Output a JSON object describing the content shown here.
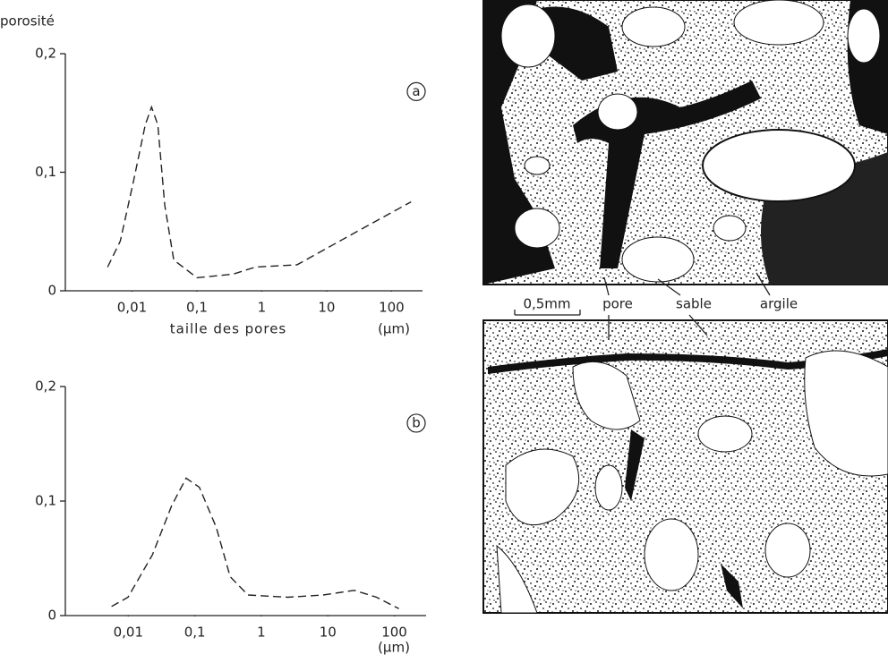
{
  "chart_data": [
    {
      "type": "line",
      "y_label": "porosité",
      "annotation": "a",
      "x_label": "taille des pores",
      "x_unit": "(µm)",
      "xscale": "log",
      "color": "#222",
      "dashed": true,
      "xlim": [
        0.001,
        300
      ],
      "ylim": [
        0,
        0.2
      ],
      "xticks": [
        {
          "value": 0.01,
          "label": "0,01"
        },
        {
          "value": 0.1,
          "label": "0,1"
        },
        1,
        10,
        100
      ],
      "yticks": [
        0,
        {
          "value": 0.1,
          "label": "0,1"
        },
        {
          "value": 0.2,
          "label": "0,2"
        }
      ],
      "x": [
        0.0042,
        0.0066,
        0.0107,
        0.016,
        0.02,
        0.025,
        0.032,
        0.044,
        0.1,
        0.36,
        0.8,
        3.5,
        20,
        200
      ],
      "values": [
        0.02,
        0.042,
        0.094,
        0.14,
        0.155,
        0.14,
        0.072,
        0.026,
        0.011,
        0.014,
        0.02,
        0.022,
        0.045,
        0.075
      ]
    },
    {
      "type": "line",
      "annotation": "b",
      "x_unit": "(µm)",
      "xscale": "log",
      "color": "#222",
      "dashed": true,
      "xlim": [
        0.001,
        300
      ],
      "ylim": [
        0,
        0.2
      ],
      "xticks": [
        {
          "value": 0.01,
          "label": "0,01"
        },
        {
          "value": 0.1,
          "label": "0,1"
        },
        1,
        10,
        100
      ],
      "yticks": [
        0,
        {
          "value": 0.1,
          "label": "0,1"
        },
        {
          "value": 0.2,
          "label": "0,2"
        }
      ],
      "x": [
        0.0056,
        0.0099,
        0.023,
        0.045,
        0.074,
        0.117,
        0.21,
        0.34,
        0.63,
        2.5,
        8.5,
        25,
        54,
        117
      ],
      "values": [
        0.008,
        0.016,
        0.053,
        0.096,
        0.12,
        0.112,
        0.077,
        0.034,
        0.018,
        0.016,
        0.018,
        0.022,
        0.016,
        0.006
      ]
    }
  ],
  "micrograph": {
    "scale_bar": "0,5mm",
    "labels": [
      "pore",
      "sable",
      "argile"
    ]
  }
}
